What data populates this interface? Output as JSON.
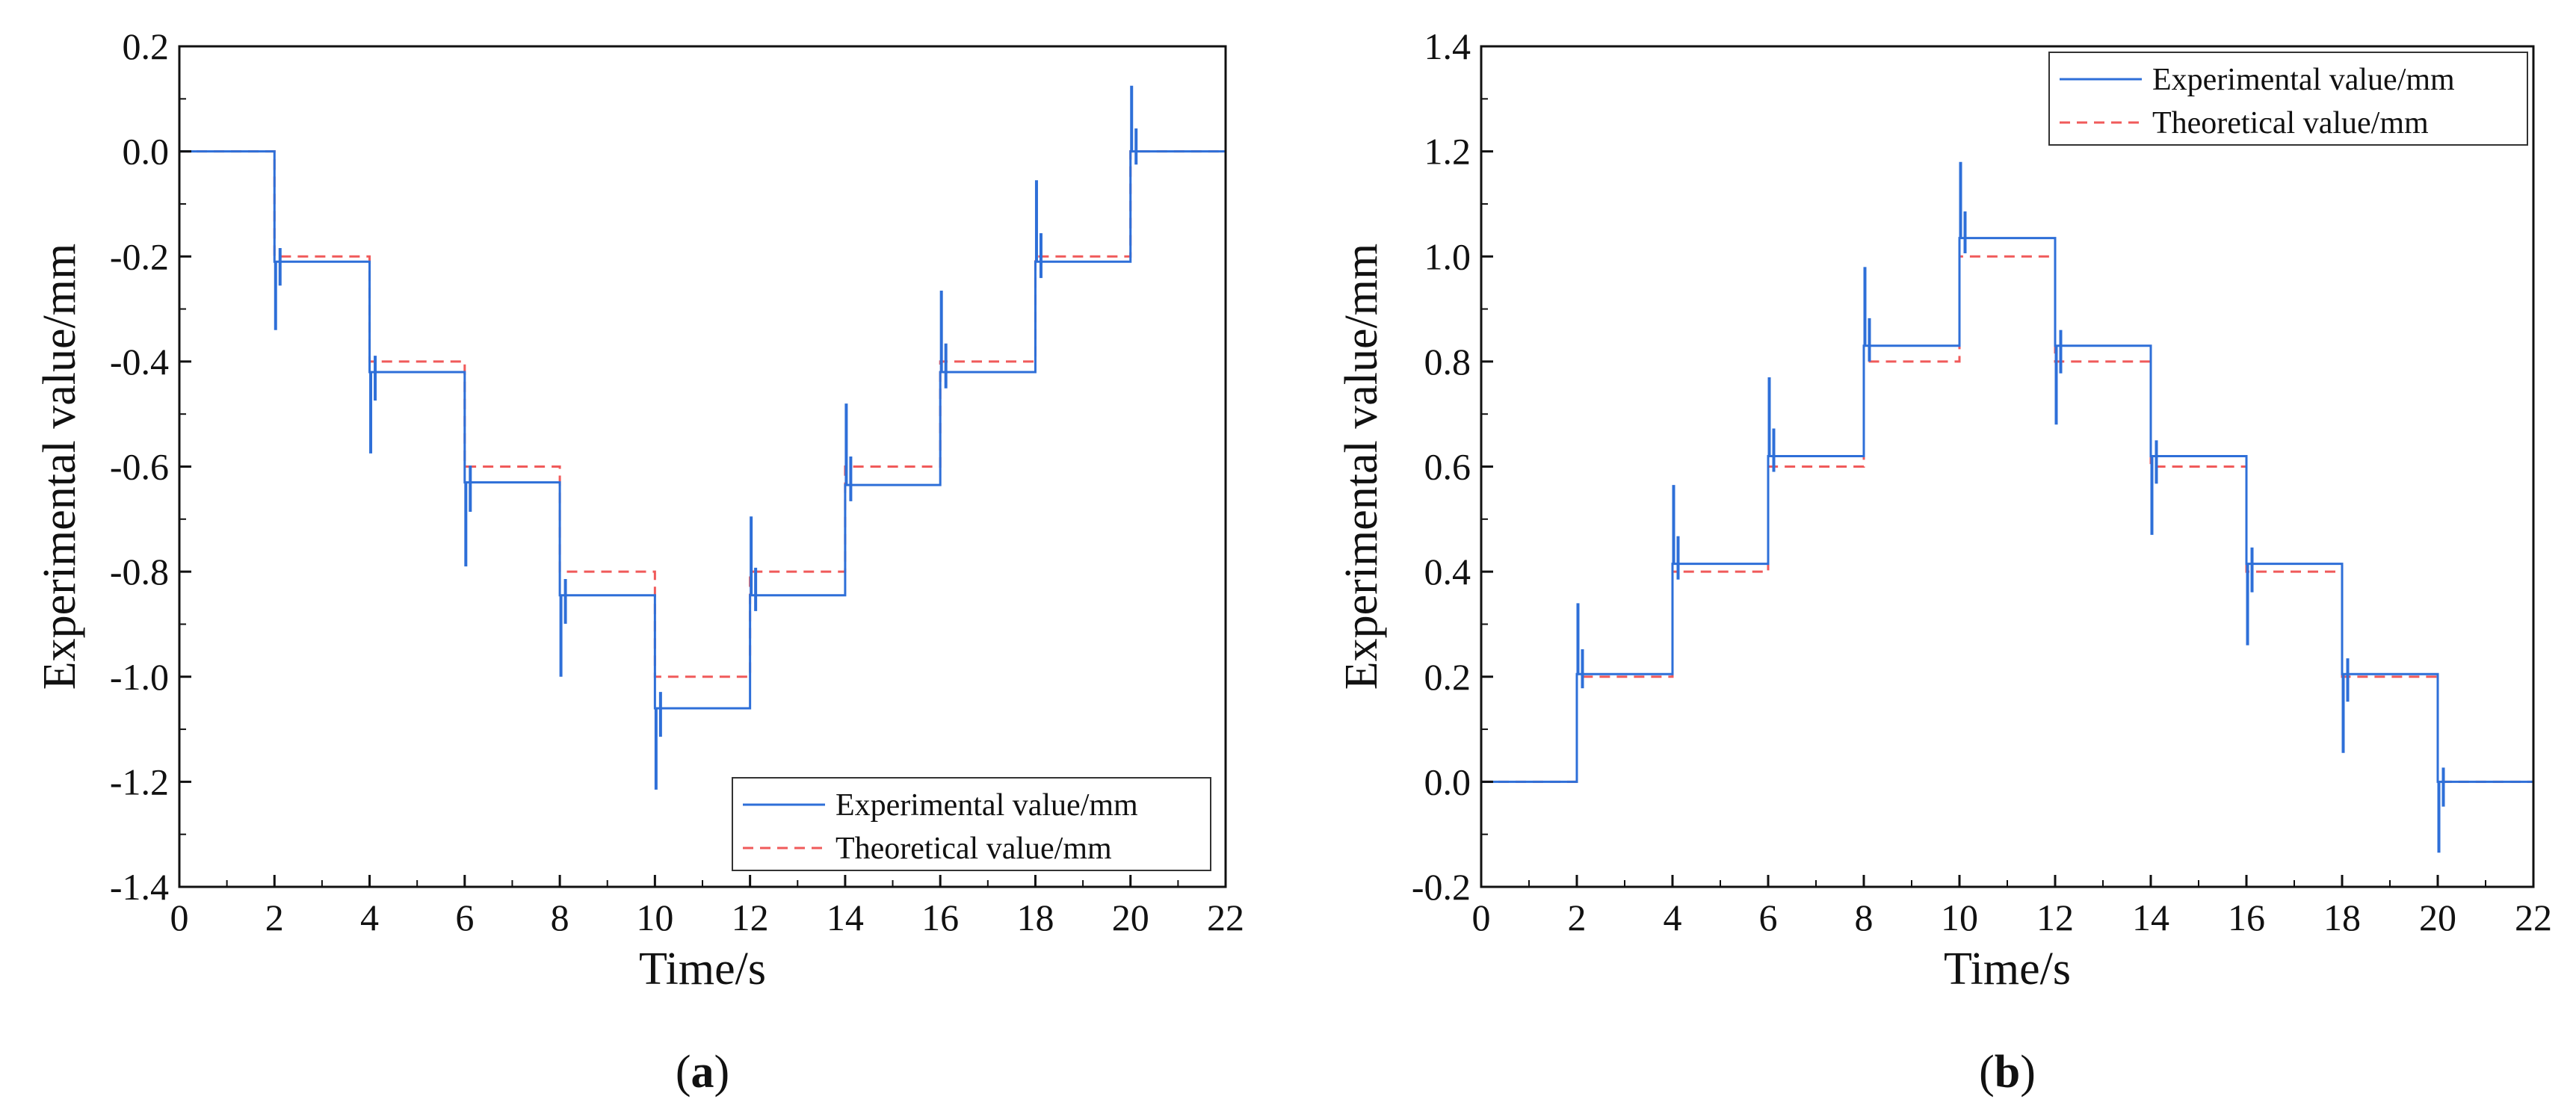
{
  "chart_data": [
    {
      "type": "line",
      "panel_label": "a",
      "xlabel": "Time/s",
      "ylabel": "Experimental value/mm",
      "xlim": [
        0,
        22
      ],
      "ylim": [
        -1.4,
        0.2
      ],
      "x_ticks": [
        "0",
        "2",
        "4",
        "6",
        "8",
        "10",
        "12",
        "14",
        "16",
        "18",
        "20",
        "22"
      ],
      "y_ticks": [
        "0.2",
        "0.0",
        "-0.2",
        "-0.4",
        "-0.6",
        "-0.8",
        "-1.0",
        "-1.2",
        "-1.4"
      ],
      "legend_position": "bottom-right",
      "series": [
        {
          "name": "Experimental value/mm",
          "style": "solid",
          "color": "#2e6fd8",
          "steps": [
            {
              "t": 0,
              "value": 0.0
            },
            {
              "t": 2,
              "value": -0.21,
              "spike": -0.34
            },
            {
              "t": 4,
              "value": -0.42,
              "spike": -0.575
            },
            {
              "t": 6,
              "value": -0.63,
              "spike": -0.79
            },
            {
              "t": 8,
              "value": -0.845,
              "spike": -1.0
            },
            {
              "t": 10,
              "value": -1.06,
              "spike": -1.215
            },
            {
              "t": 12,
              "value": -0.845,
              "spike": -0.695
            },
            {
              "t": 14,
              "value": -0.635,
              "spike": -0.48
            },
            {
              "t": 16,
              "value": -0.42,
              "spike": -0.265
            },
            {
              "t": 18,
              "value": -0.21,
              "spike": -0.055
            },
            {
              "t": 20,
              "value": 0.0,
              "spike": 0.125
            }
          ],
          "end_t": 22
        },
        {
          "name": "Theoretical value/mm",
          "style": "dashed",
          "color": "#f05a5a",
          "steps": [
            {
              "t": 0,
              "value": 0.0
            },
            {
              "t": 2,
              "value": -0.2
            },
            {
              "t": 4,
              "value": -0.4
            },
            {
              "t": 6,
              "value": -0.6
            },
            {
              "t": 8,
              "value": -0.8
            },
            {
              "t": 10,
              "value": -1.0
            },
            {
              "t": 12,
              "value": -0.8
            },
            {
              "t": 14,
              "value": -0.6
            },
            {
              "t": 16,
              "value": -0.4
            },
            {
              "t": 18,
              "value": -0.2
            },
            {
              "t": 20,
              "value": 0.0
            }
          ],
          "end_t": 22
        }
      ]
    },
    {
      "type": "line",
      "panel_label": "b",
      "xlabel": "Time/s",
      "ylabel": "Experimental value/mm",
      "xlim": [
        0,
        22
      ],
      "ylim": [
        -0.2,
        1.4
      ],
      "x_ticks": [
        "0",
        "2",
        "4",
        "6",
        "8",
        "10",
        "12",
        "14",
        "16",
        "18",
        "20",
        "22"
      ],
      "y_ticks": [
        "1.4",
        "1.2",
        "1.0",
        "0.8",
        "0.6",
        "0.4",
        "0.2",
        "0.0",
        "-0.2"
      ],
      "legend_position": "top-right",
      "series": [
        {
          "name": "Experimental value/mm",
          "style": "solid",
          "color": "#2e6fd8",
          "steps": [
            {
              "t": 0,
              "value": 0.0
            },
            {
              "t": 2,
              "value": 0.205,
              "spike": 0.34
            },
            {
              "t": 4,
              "value": 0.415,
              "spike": 0.565
            },
            {
              "t": 6,
              "value": 0.62,
              "spike": 0.77
            },
            {
              "t": 8,
              "value": 0.83,
              "spike": 0.98
            },
            {
              "t": 10,
              "value": 1.035,
              "spike": 1.18
            },
            {
              "t": 12,
              "value": 0.83,
              "spike": 0.68
            },
            {
              "t": 14,
              "value": 0.62,
              "spike": 0.47
            },
            {
              "t": 16,
              "value": 0.415,
              "spike": 0.26
            },
            {
              "t": 18,
              "value": 0.205,
              "spike": 0.055
            },
            {
              "t": 20,
              "value": 0.0,
              "spike": -0.135
            }
          ],
          "end_t": 22
        },
        {
          "name": "Theoretical value/mm",
          "style": "dashed",
          "color": "#f05a5a",
          "steps": [
            {
              "t": 0,
              "value": 0.0
            },
            {
              "t": 2,
              "value": 0.2
            },
            {
              "t": 4,
              "value": 0.4
            },
            {
              "t": 6,
              "value": 0.6
            },
            {
              "t": 8,
              "value": 0.8
            },
            {
              "t": 10,
              "value": 1.0
            },
            {
              "t": 12,
              "value": 0.8
            },
            {
              "t": 14,
              "value": 0.6
            },
            {
              "t": 16,
              "value": 0.4
            },
            {
              "t": 18,
              "value": 0.2
            },
            {
              "t": 20,
              "value": 0.0
            }
          ],
          "end_t": 22
        }
      ]
    }
  ]
}
